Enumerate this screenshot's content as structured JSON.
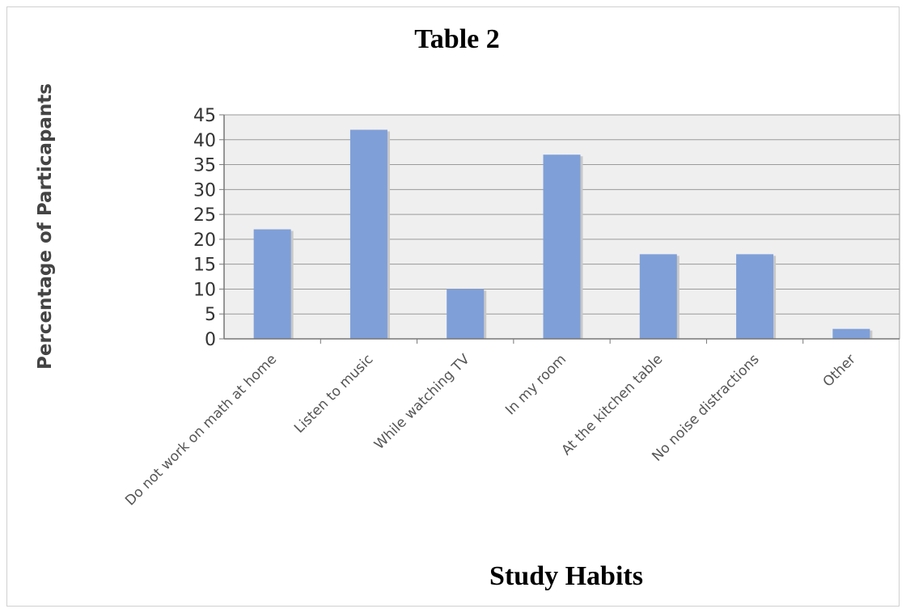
{
  "chart_data": {
    "type": "bar",
    "title": "Table 2",
    "xlabel": "Study Habits",
    "ylabel": "Percentage of Particapants",
    "categories": [
      "Do not work on math at home",
      "Listen to music",
      "While watching TV",
      "In my room",
      "At the kitchen table",
      "No noise distractions",
      "Other"
    ],
    "values": [
      22,
      42,
      10,
      37,
      17,
      17,
      2
    ],
    "ylim": [
      0,
      45
    ],
    "yticks": [
      "0",
      "5",
      "10",
      "15",
      "20",
      "25",
      "30",
      "35",
      "40",
      "45"
    ],
    "grid": true,
    "legend": "none",
    "bar_color": "#7f9fd8",
    "plot_bg": "#efefef"
  }
}
